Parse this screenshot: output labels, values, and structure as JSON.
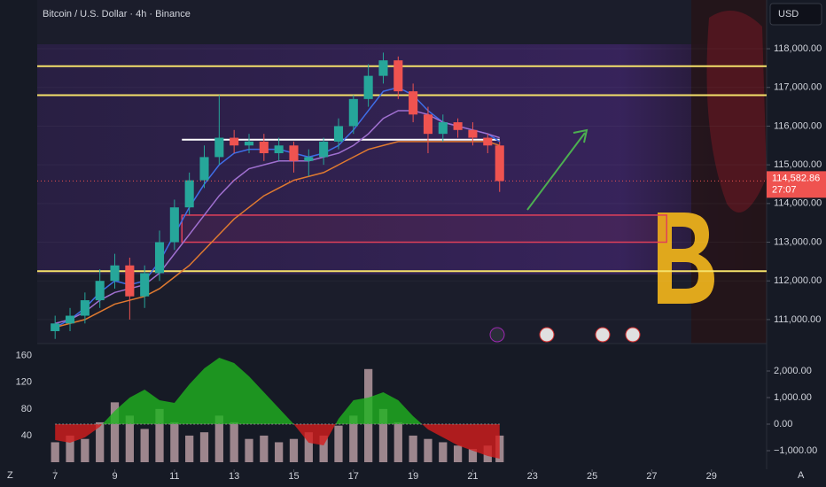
{
  "ui": {
    "currency": "USD",
    "left_corner": "Z",
    "right_corner": "A"
  },
  "chart_data": [
    {
      "type": "candlestick",
      "title": "Bitcoin / U.S. Dollar · 4h · Binance",
      "x": [
        7,
        7.5,
        8,
        8.5,
        9,
        9.5,
        10,
        10.5,
        11,
        11.5,
        12,
        12.5,
        13,
        13.5,
        14,
        14.5,
        15,
        15.5,
        16,
        16.5,
        17,
        17.5,
        18,
        18.5,
        19,
        19.5,
        20,
        20.5,
        21,
        21.5,
        21.9
      ],
      "open": [
        110700,
        110900,
        111100,
        111500,
        112000,
        112400,
        111600,
        112200,
        113000,
        113900,
        114600,
        115200,
        115700,
        115500,
        115600,
        115300,
        115500,
        115100,
        115200,
        115600,
        116000,
        116700,
        117300,
        117700,
        116900,
        116300,
        115800,
        116100,
        115900,
        115700,
        115500
      ],
      "high": [
        111100,
        111300,
        111700,
        112300,
        112700,
        112600,
        112400,
        113300,
        114100,
        114800,
        115500,
        116800,
        115900,
        115800,
        115800,
        115700,
        115600,
        115400,
        115700,
        116200,
        116800,
        117600,
        117900,
        117800,
        117100,
        116500,
        116300,
        116200,
        116100,
        115800,
        115600
      ],
      "low": [
        110500,
        110700,
        110900,
        111300,
        111800,
        111000,
        111300,
        112000,
        112800,
        113700,
        114400,
        115000,
        115300,
        115300,
        115100,
        115100,
        114800,
        114700,
        115000,
        115400,
        115800,
        116500,
        117100,
        116700,
        116100,
        115300,
        115600,
        115700,
        115500,
        115300,
        114300
      ],
      "close": [
        110900,
        111100,
        111500,
        112000,
        112400,
        111600,
        112200,
        113000,
        113900,
        114600,
        115200,
        115700,
        115500,
        115600,
        115300,
        115500,
        115100,
        115200,
        115600,
        116000,
        116700,
        117300,
        117700,
        116900,
        116300,
        115800,
        116100,
        115900,
        115700,
        115500,
        114580
      ],
      "up_color": "#26a69a",
      "down_color": "#ef5350",
      "moving_averages": [
        {
          "color": "#3f6ee8",
          "values": [
            110800,
            111000,
            111300,
            111700,
            112000,
            111900,
            112000,
            112500,
            113200,
            113900,
            114500,
            115000,
            115300,
            115400,
            115400,
            115400,
            115300,
            115200,
            115300,
            115500,
            115900,
            116400,
            116900,
            117000,
            116800,
            116400,
            116100,
            116000,
            115900,
            115800,
            115600
          ]
        },
        {
          "color": "#a070d0",
          "values": [
            110900,
            111000,
            111200,
            111500,
            111700,
            111800,
            111900,
            112200,
            112700,
            113200,
            113700,
            114200,
            114600,
            114900,
            115000,
            115100,
            115100,
            115100,
            115200,
            115300,
            115500,
            115800,
            116200,
            116400,
            116400,
            116300,
            116100,
            116000,
            115900,
            115800,
            115700
          ]
        },
        {
          "color": "#e07a30",
          "values": [
            110800,
            110900,
            111000,
            111200,
            111400,
            111500,
            111600,
            111800,
            112100,
            112400,
            112800,
            113200,
            113600,
            113900,
            114200,
            114400,
            114600,
            114700,
            114800,
            115000,
            115200,
            115400,
            115500,
            115600,
            115600,
            115600,
            115600,
            115600,
            115600,
            115600,
            115500
          ]
        }
      ],
      "levels": [
        {
          "value": 117550,
          "color": "#f5e16a"
        },
        {
          "value": 116800,
          "color": "#f5e16a"
        },
        {
          "value": 115650,
          "color": "#ffffff",
          "xlim": [
            11.25,
            21.9
          ]
        },
        {
          "value": 112250,
          "color": "#f5e16a"
        }
      ],
      "zone": {
        "ylim": [
          113000,
          113700
        ],
        "xlim": [
          11.25,
          27.5
        ],
        "color": "#e0405a"
      },
      "last_price": {
        "value": 114582.86,
        "label": "114,582.86",
        "countdown": "27:07"
      },
      "xlim": [
        6.4,
        30.85
      ],
      "ylim": [
        110380,
        118230
      ],
      "yticks": [
        {
          "value": 111000,
          "label": "111,000.00"
        },
        {
          "value": 112000,
          "label": "112,000.00"
        },
        {
          "value": 113000,
          "label": "113,000.00"
        },
        {
          "value": 114000,
          "label": "114,000.00"
        },
        {
          "value": 115000,
          "label": "115,000.00"
        },
        {
          "value": 116000,
          "label": "116,000.00"
        },
        {
          "value": 117000,
          "label": "117,000.00"
        },
        {
          "value": 118000,
          "label": "118,000.00"
        }
      ]
    },
    {
      "type": "volume-oscillator",
      "x": [
        7,
        7.5,
        8,
        8.5,
        9,
        9.5,
        10,
        10.5,
        11,
        11.5,
        12,
        12.5,
        13,
        13.5,
        14,
        14.5,
        15,
        15.5,
        16,
        16.5,
        17,
        17.5,
        18,
        18.5,
        19,
        19.5,
        20,
        20.5,
        21,
        21.5,
        21.9
      ],
      "series": [
        {
          "color": "#b59aa0",
          "values": [
            30,
            40,
            35,
            60,
            90,
            70,
            50,
            80,
            60,
            40,
            45,
            70,
            60,
            35,
            40,
            30,
            35,
            45,
            40,
            55,
            70,
            140,
            80,
            60,
            40,
            35,
            30,
            25,
            20,
            25,
            40
          ]
        },
        {
          "axis": "y2",
          "positive_color": "#1fb31f",
          "negative_color": "#d41c1c",
          "values": [
            -600,
            -700,
            -500,
            -100,
            500,
            1000,
            1300,
            900,
            800,
            1500,
            2100,
            2500,
            2300,
            1800,
            1200,
            600,
            0,
            -700,
            -800,
            200,
            900,
            1000,
            1200,
            900,
            300,
            -200,
            -500,
            -800,
            -1000,
            -1200,
            -1300
          ]
        }
      ],
      "xlim": [
        6.4,
        30.85
      ],
      "xticks": [
        7,
        9,
        11,
        13,
        15,
        17,
        19,
        21,
        23,
        25,
        27,
        29
      ],
      "ylim": [
        0,
        173
      ],
      "yticks": [
        40,
        80,
        120,
        160
      ],
      "y2lim": [
        -1433,
        2900
      ],
      "y2ticks": [
        {
          "value": -1000,
          "label": "−1,000.00"
        },
        {
          "value": 0,
          "label": "0.00"
        },
        {
          "value": 1000,
          "label": "1,000.00"
        },
        {
          "value": 2000,
          "label": "2,000.00"
        }
      ]
    }
  ]
}
